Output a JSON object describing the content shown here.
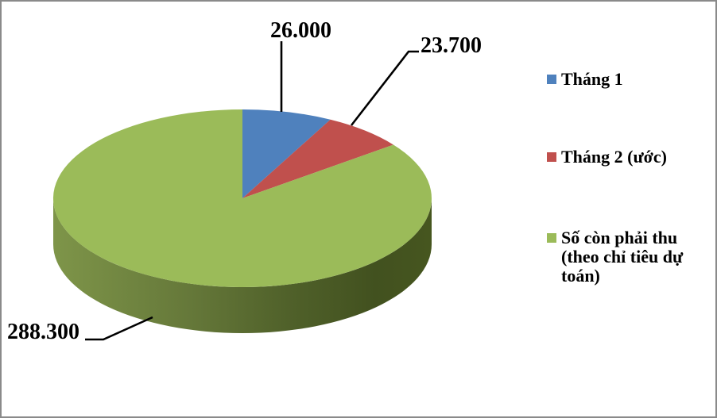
{
  "frame": {
    "background": "#FFFFFF",
    "border_color": "#8A8A8A"
  },
  "chart_data": {
    "type": "pie",
    "style": "3d-pie",
    "title": "",
    "start_angle_deg": 0,
    "direction": "clockwise",
    "legend_position": "right",
    "total": 338000,
    "number_format": "thousands with dot separator",
    "series": [
      {
        "label": "Tháng 1",
        "value": 26000,
        "display_value": "26.000",
        "color": "#4F81BD"
      },
      {
        "label": "Tháng 2 (ước)",
        "value": 23700,
        "display_value": "23.700",
        "color": "#C0504D"
      },
      {
        "label": "Số còn phải thu (theo chỉ tiêu dự toán)",
        "label_lines": [
          "Số còn phải thu",
          "(theo chỉ tiêu dự",
          "toán)"
        ],
        "value": 288300,
        "display_value": "288.300",
        "color": "#9BBB59"
      }
    ],
    "depth_colors": [
      "#7E9549",
      "#66793A",
      "#50612A",
      "#42511F"
    ],
    "label_color": "#000000",
    "leader_line_color": "#000000"
  }
}
